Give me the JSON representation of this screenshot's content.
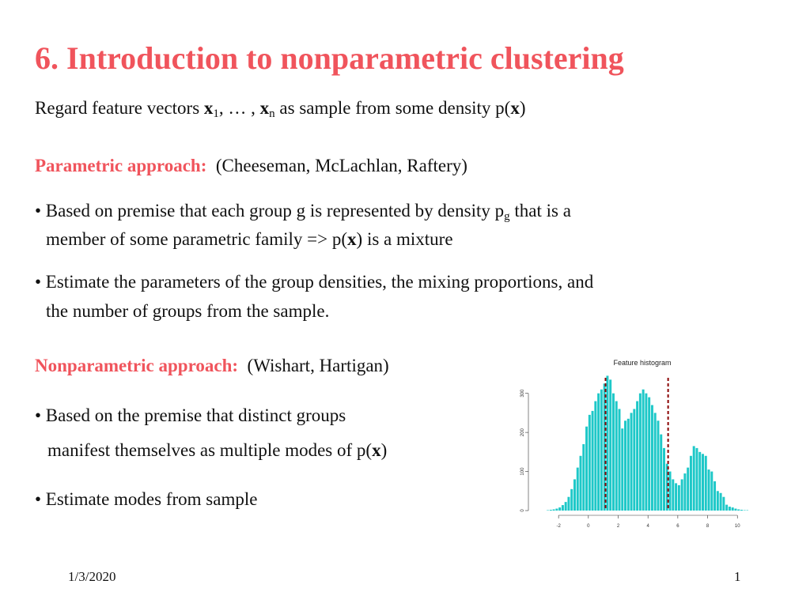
{
  "slide": {
    "title": "6. Introduction to nonparametric clustering",
    "intro": {
      "part1": "Regard feature vectors ",
      "x1": "x",
      "sub1": "1",
      "part2": ", … , ",
      "xn": "x",
      "subn": "n",
      "part3": " as sample from some density p(",
      "x": "x",
      "part4": ")"
    },
    "parametric": {
      "heading": "Parametric approach:",
      "refs": "(Cheeseman, McLachlan, Raftery)",
      "b1_part1": "• Based on premise that each group g is represented by density p",
      "b1_sub": "g",
      "b1_part2": " that is a",
      "b1_line2a": "member of  some parametric family => p(",
      "b1_x": "x",
      "b1_line2b": ") is a mixture",
      "b2_line1": "• Estimate the parameters of the group densities, the mixing proportions, and",
      "b2_line2": "the number of groups from the sample."
    },
    "nonparametric": {
      "heading": "Nonparametric approach:",
      "refs": "(Wishart, Hartigan)",
      "b1_line1": "• Based on the premise that distinct groups",
      "b1_line2a": "manifest themselves as multiple modes of p(",
      "b1_x": "x",
      "b1_line2b": ")",
      "b2": "• Estimate modes from sample"
    },
    "footer": {
      "date": "1/3/2020",
      "page": "1"
    }
  },
  "chart_data": {
    "type": "bar",
    "title": "Feature histogram",
    "xlabel": "",
    "ylabel": "",
    "x_ticks": [
      -2,
      0,
      2,
      4,
      6,
      8,
      10
    ],
    "y_ticks": [
      0,
      100,
      200,
      300
    ],
    "xlim": [
      -3.6,
      10.2
    ],
    "ylim": [
      0,
      360
    ],
    "bin_start": -3.2,
    "bin_width": 0.2,
    "values": [
      0,
      0,
      1,
      2,
      3,
      5,
      8,
      14,
      22,
      35,
      55,
      80,
      110,
      140,
      170,
      215,
      245,
      255,
      280,
      300,
      310,
      325,
      345,
      335,
      300,
      280,
      260,
      210,
      230,
      235,
      250,
      260,
      280,
      300,
      310,
      300,
      290,
      270,
      250,
      230,
      195,
      160,
      120,
      100,
      80,
      70,
      65,
      80,
      95,
      110,
      140,
      165,
      160,
      150,
      145,
      140,
      105,
      100,
      75,
      50,
      45,
      35,
      15,
      10,
      8,
      5,
      3,
      2,
      1,
      1
    ],
    "bar_color": "#1ec8c8",
    "vlines": [
      {
        "x": 1.15,
        "color": "#8b0000",
        "style": "dashed"
      },
      {
        "x": 5.35,
        "color": "#8b0000",
        "style": "dashed"
      }
    ]
  }
}
